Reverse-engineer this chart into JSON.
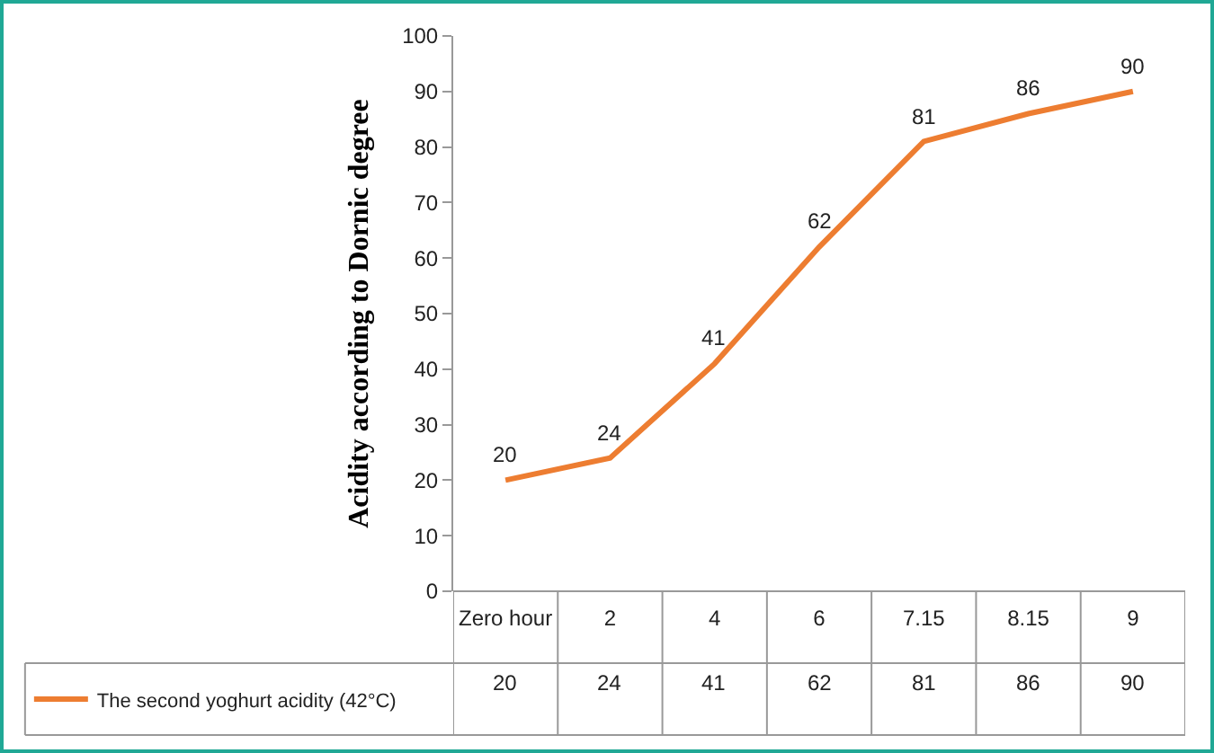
{
  "chart_data": {
    "type": "line",
    "ylabel": "Acidity according to Dornic degree",
    "categories": [
      "Zero hour",
      "2",
      "4",
      "6",
      "7.15",
      "8.15",
      "9"
    ],
    "series": [
      {
        "name": "The second yoghurt acidity (42°C)",
        "color": "#ed7d31",
        "values": [
          20,
          24,
          41,
          62,
          81,
          86,
          90
        ],
        "value_labels": [
          "20",
          "24",
          "41",
          "62",
          "81",
          "86",
          "90"
        ]
      }
    ],
    "ylim": [
      0,
      100
    ],
    "yticks": [
      0,
      10,
      20,
      30,
      40,
      50,
      60,
      70,
      80,
      90,
      100
    ],
    "legend": "bottom left"
  }
}
